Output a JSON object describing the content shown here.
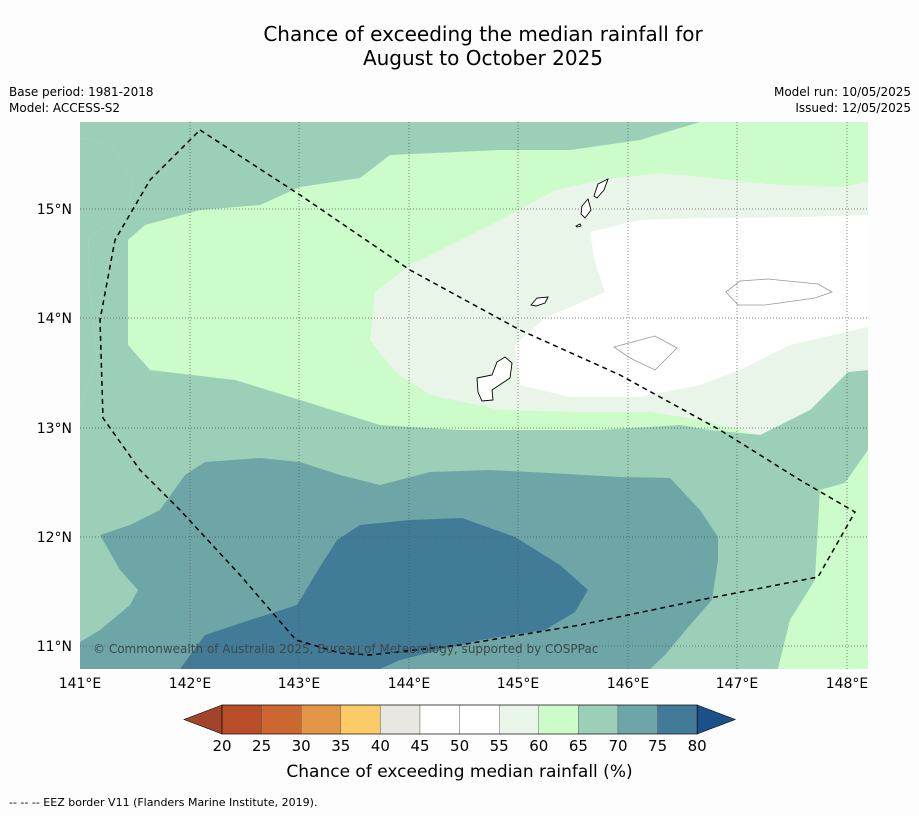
{
  "title_line1": "Chance of exceeding the median rainfall for",
  "title_line2": "August to October 2025",
  "meta_left": [
    "Base period: 1981-2018",
    "Model: ACCESS-S2"
  ],
  "meta_right": [
    "Model run: 10/05/2025",
    "Issued: 12/05/2025"
  ],
  "copyright": "© Commonwealth of Australia 2025, Bureau of Meteorology, supported by COSPPac",
  "colorbar": {
    "label": "Chance of exceeding median rainfall (%)",
    "ticks": [
      "20",
      "25",
      "30",
      "35",
      "40",
      "45",
      "50",
      "55",
      "60",
      "65",
      "70",
      "75",
      "80"
    ],
    "colors": [
      "#a0452a",
      "#b84d28",
      "#cd6732",
      "#e39647",
      "#fbcb68",
      "#e9e7e2",
      "#ffffff",
      "#ffffff",
      "#e9f5e8",
      "#cbfcc9",
      "#9ccfb7",
      "#6ea6a8",
      "#427b98",
      "#1c5088"
    ]
  },
  "axes": {
    "x_ticks": [
      "141°E",
      "142°E",
      "143°E",
      "144°E",
      "145°E",
      "146°E",
      "147°E",
      "148°E"
    ],
    "y_ticks": [
      "15°N",
      "14°N",
      "13°N",
      "12°N",
      "11°N"
    ]
  },
  "footnote": "--  --  -- EEZ border V11 (Flanders Marine Institute, 2019)."
}
